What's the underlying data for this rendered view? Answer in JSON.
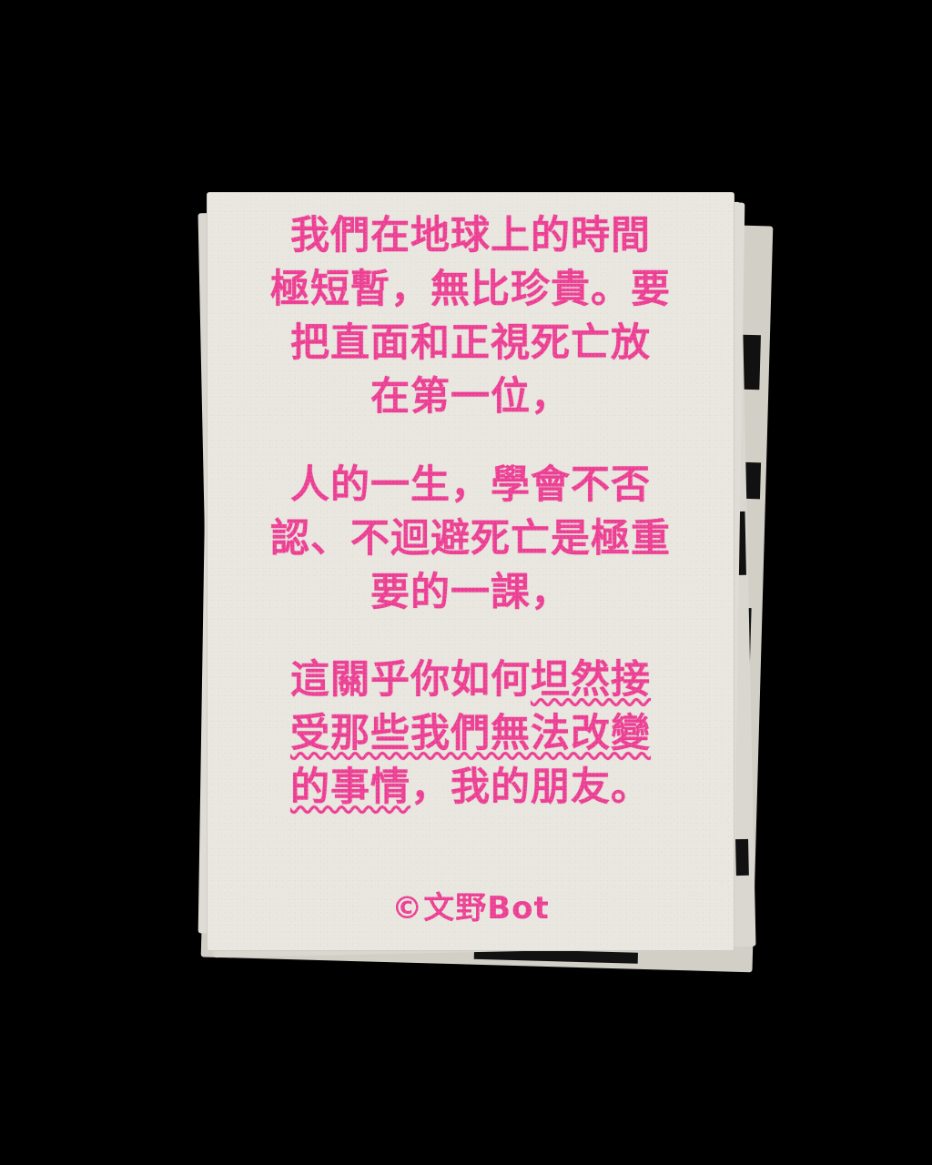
{
  "poem": {
    "stanza1": {
      "line1": "我們在地球上的時間",
      "line2": "極短暫，無比珍貴。要",
      "line3": "把直面和正視死亡放",
      "line4": "在第一位，"
    },
    "stanza2": {
      "line1": "人的一生，學會不否",
      "line2": "認、不迴避死亡是極重",
      "line3": "要的一課，"
    },
    "stanza3": {
      "line1_plain": "這關乎你如何",
      "line1_underlined": "坦然接",
      "line2": "受那些我們無法改變",
      "line3_underlined": "的事情",
      "line3_plain": "，我的朋友。"
    }
  },
  "credit": "©文野Bot",
  "colors": {
    "ink": "#ec3f93",
    "paper": "#e8e6df",
    "background": "#000000"
  }
}
